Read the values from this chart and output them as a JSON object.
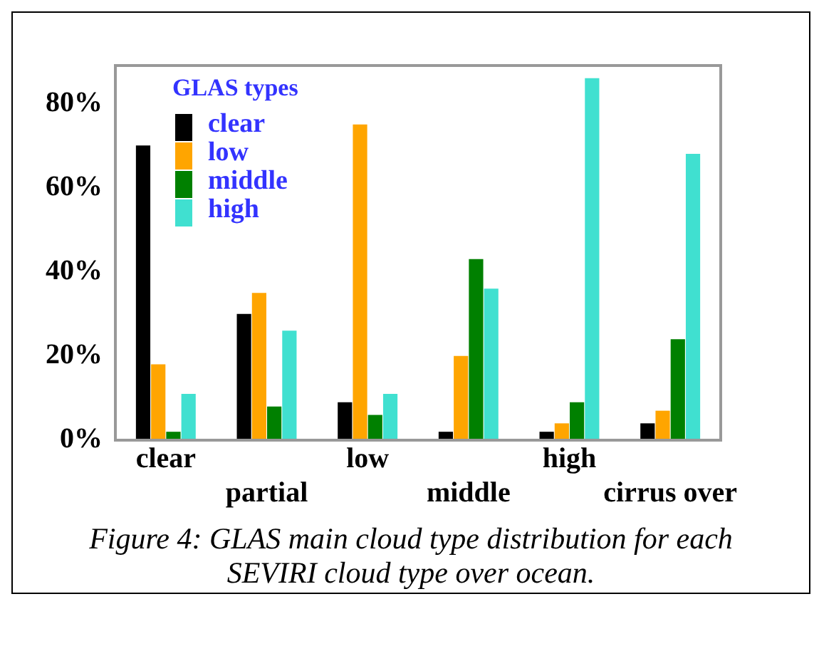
{
  "chart_data": {
    "type": "bar",
    "title": "Figure 4: GLAS main cloud type distribution for each SEVIRI cloud type over ocean.",
    "legend_title": "GLAS types",
    "categories": [
      "clear",
      "partial",
      "low",
      "middle",
      "high",
      "cirrus over"
    ],
    "series": [
      {
        "name": "clear",
        "color": "#000000",
        "values": [
          70,
          30,
          9,
          2,
          2,
          4
        ]
      },
      {
        "name": "low",
        "color": "#ffa500",
        "values": [
          18,
          35,
          75,
          20,
          4,
          7
        ]
      },
      {
        "name": "middle",
        "color": "#008000",
        "values": [
          2,
          8,
          6,
          43,
          9,
          24
        ]
      },
      {
        "name": "high",
        "color": "#40e0d0",
        "values": [
          11,
          26,
          11,
          36,
          86,
          68
        ]
      }
    ],
    "ylim": [
      0,
      89
    ],
    "yticks": [
      {
        "value": 0,
        "label": "0%"
      },
      {
        "value": 20,
        "label": "20%"
      },
      {
        "value": 40,
        "label": "40%"
      },
      {
        "value": 60,
        "label": "60%"
      },
      {
        "value": 80,
        "label": "80%"
      }
    ],
    "grid": false,
    "legend": "top left"
  }
}
